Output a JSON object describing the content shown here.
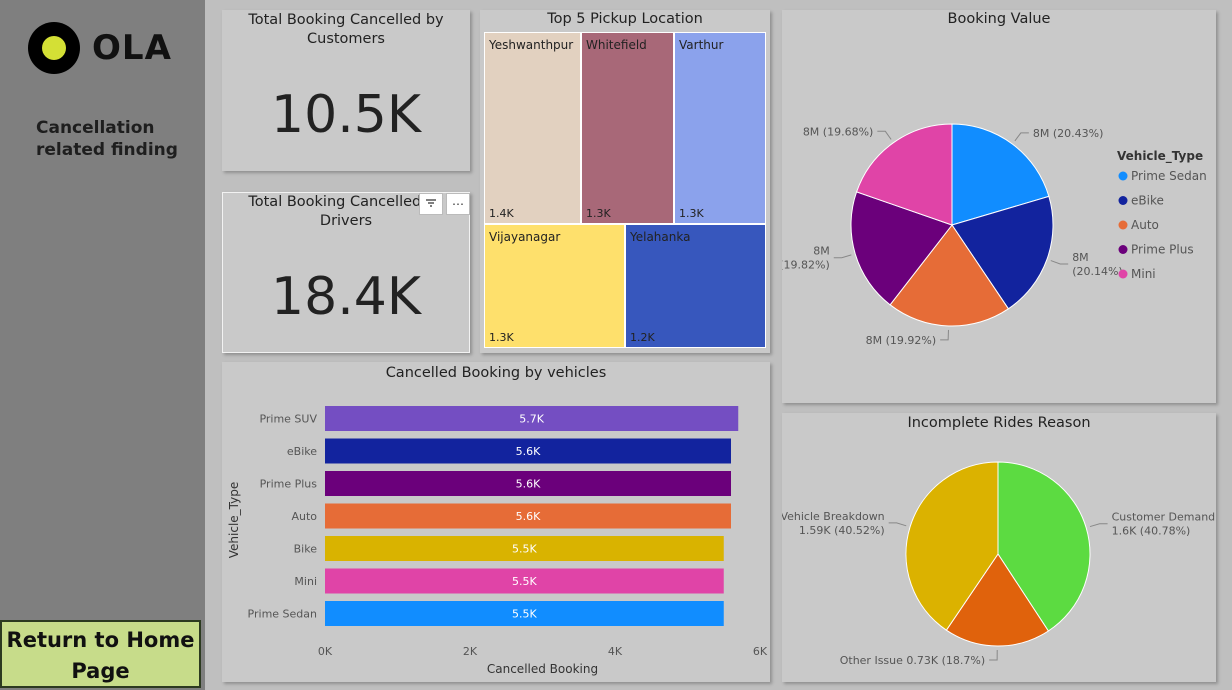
{
  "brand": {
    "logo_text": "OLA"
  },
  "sidebar": {
    "title": "Cancellation related finding",
    "home_button": "Return to Home Page"
  },
  "kpis": [
    {
      "title": "Total Booking Cancelled by Customers",
      "value": "10.5K"
    },
    {
      "title": "Total Booking Cancelled by Drivers",
      "value": "18.4K"
    }
  ],
  "treemap": {
    "title": "Top 5 Pickup Location",
    "items": [
      {
        "name": "Yeshwanthpur",
        "label": "1.4K",
        "color": "#e2d1c0"
      },
      {
        "name": "Whitefield",
        "label": "1.3K",
        "color": "#a86878"
      },
      {
        "name": "Varthur",
        "label": "1.3K",
        "color": "#8ba2ec"
      },
      {
        "name": "Vijayanagar",
        "label": "1.3K",
        "color": "#fee06c"
      },
      {
        "name": "Yelahanka",
        "label": "1.2K",
        "color": "#3757bd"
      }
    ]
  },
  "chart_data": [
    {
      "type": "pie",
      "title": "Booking Value",
      "legend_title": "Vehicle_Type",
      "legend_position": "right",
      "slices": [
        {
          "name": "Prime Sedan",
          "label": "8M (20.43%)",
          "percent": 20.43,
          "color": "#118dff"
        },
        {
          "name": "eBike",
          "label": "8M (20.14%)",
          "percent": 20.14,
          "color": "#12239e"
        },
        {
          "name": "Auto",
          "label": "8M (19.92%)",
          "percent": 19.92,
          "color": "#e66c37"
        },
        {
          "name": "Prime Plus",
          "label": "8M (19.82%)",
          "percent": 19.82,
          "color": "#6b007b"
        },
        {
          "name": "Mini",
          "label": "8M (19.68%)",
          "percent": 19.68,
          "color": "#e044a7"
        }
      ]
    },
    {
      "type": "bar",
      "orientation": "horizontal",
      "title": "Cancelled Booking by vehicles",
      "xlabel": "Cancelled Booking",
      "ylabel": "Vehicle_Type",
      "xlim": [
        0,
        6000
      ],
      "xticks": [
        "0K",
        "2K",
        "4K",
        "6K"
      ],
      "categories": [
        "Prime SUV",
        "eBike",
        "Prime Plus",
        "Auto",
        "Bike",
        "Mini",
        "Prime Sedan"
      ],
      "values": [
        5700,
        5600,
        5600,
        5600,
        5500,
        5500,
        5500
      ],
      "labels": [
        "5.7K",
        "5.6K",
        "5.6K",
        "5.6K",
        "5.5K",
        "5.5K",
        "5.5K"
      ],
      "colors": [
        "#744ec2",
        "#12239e",
        "#6b007b",
        "#e66c37",
        "#d9b300",
        "#e044a7",
        "#118dff"
      ]
    },
    {
      "type": "pie",
      "title": "Incomplete Rides Reason",
      "slices": [
        {
          "name": "Customer Demand",
          "label": "1.6K (40.78%)",
          "percent": 40.78,
          "color": "#5cdb41"
        },
        {
          "name": "Other Issue",
          "label": "0.73K (18.7%)",
          "percent": 18.7,
          "color": "#e0620c"
        },
        {
          "name": "Vehicle Breakdown",
          "label": "1.59K (40.52%)",
          "percent": 40.52,
          "color": "#dbb200"
        }
      ]
    }
  ]
}
